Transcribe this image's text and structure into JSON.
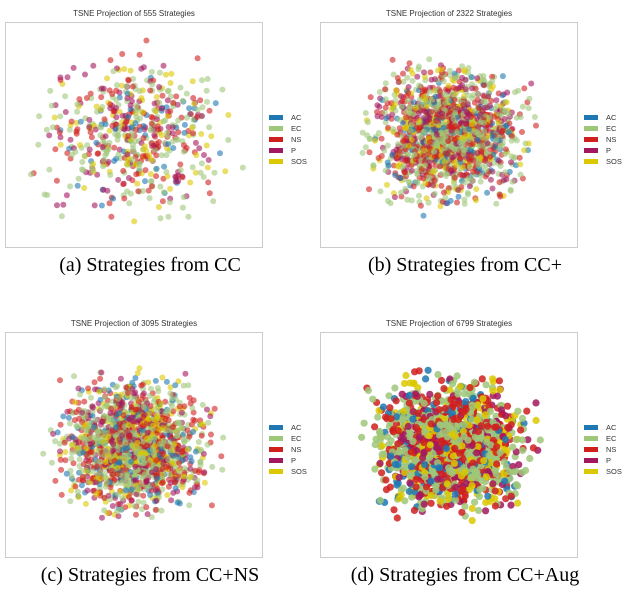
{
  "chart_data": [
    {
      "type": "scatter",
      "title": "TSNE Projection of 555 Strategies",
      "caption": "(a) Strategies from CC",
      "n": 555
    },
    {
      "type": "scatter",
      "title": "TSNE Projection of 2322 Strategies",
      "caption": "(b) Strategies from CC+",
      "n": 2322
    },
    {
      "type": "scatter",
      "title": "TSNE Projection of 3095 Strategies",
      "caption": "(c) Strategies from CC+NS",
      "n": 3095
    },
    {
      "type": "scatter",
      "title": "TSNE Projection of 6799 Strategies",
      "caption": "(d) Strategies from CC+Aug",
      "n": 6799
    }
  ],
  "legend": [
    {
      "label": "AC",
      "color": "#1f78b4"
    },
    {
      "label": "EC",
      "color": "#9fc77a"
    },
    {
      "label": "NS",
      "color": "#d0201e"
    },
    {
      "label": "P",
      "color": "#a3175e"
    },
    {
      "label": "SOS",
      "color": "#dcc800"
    }
  ],
  "grid": false,
  "legend_position": "right"
}
